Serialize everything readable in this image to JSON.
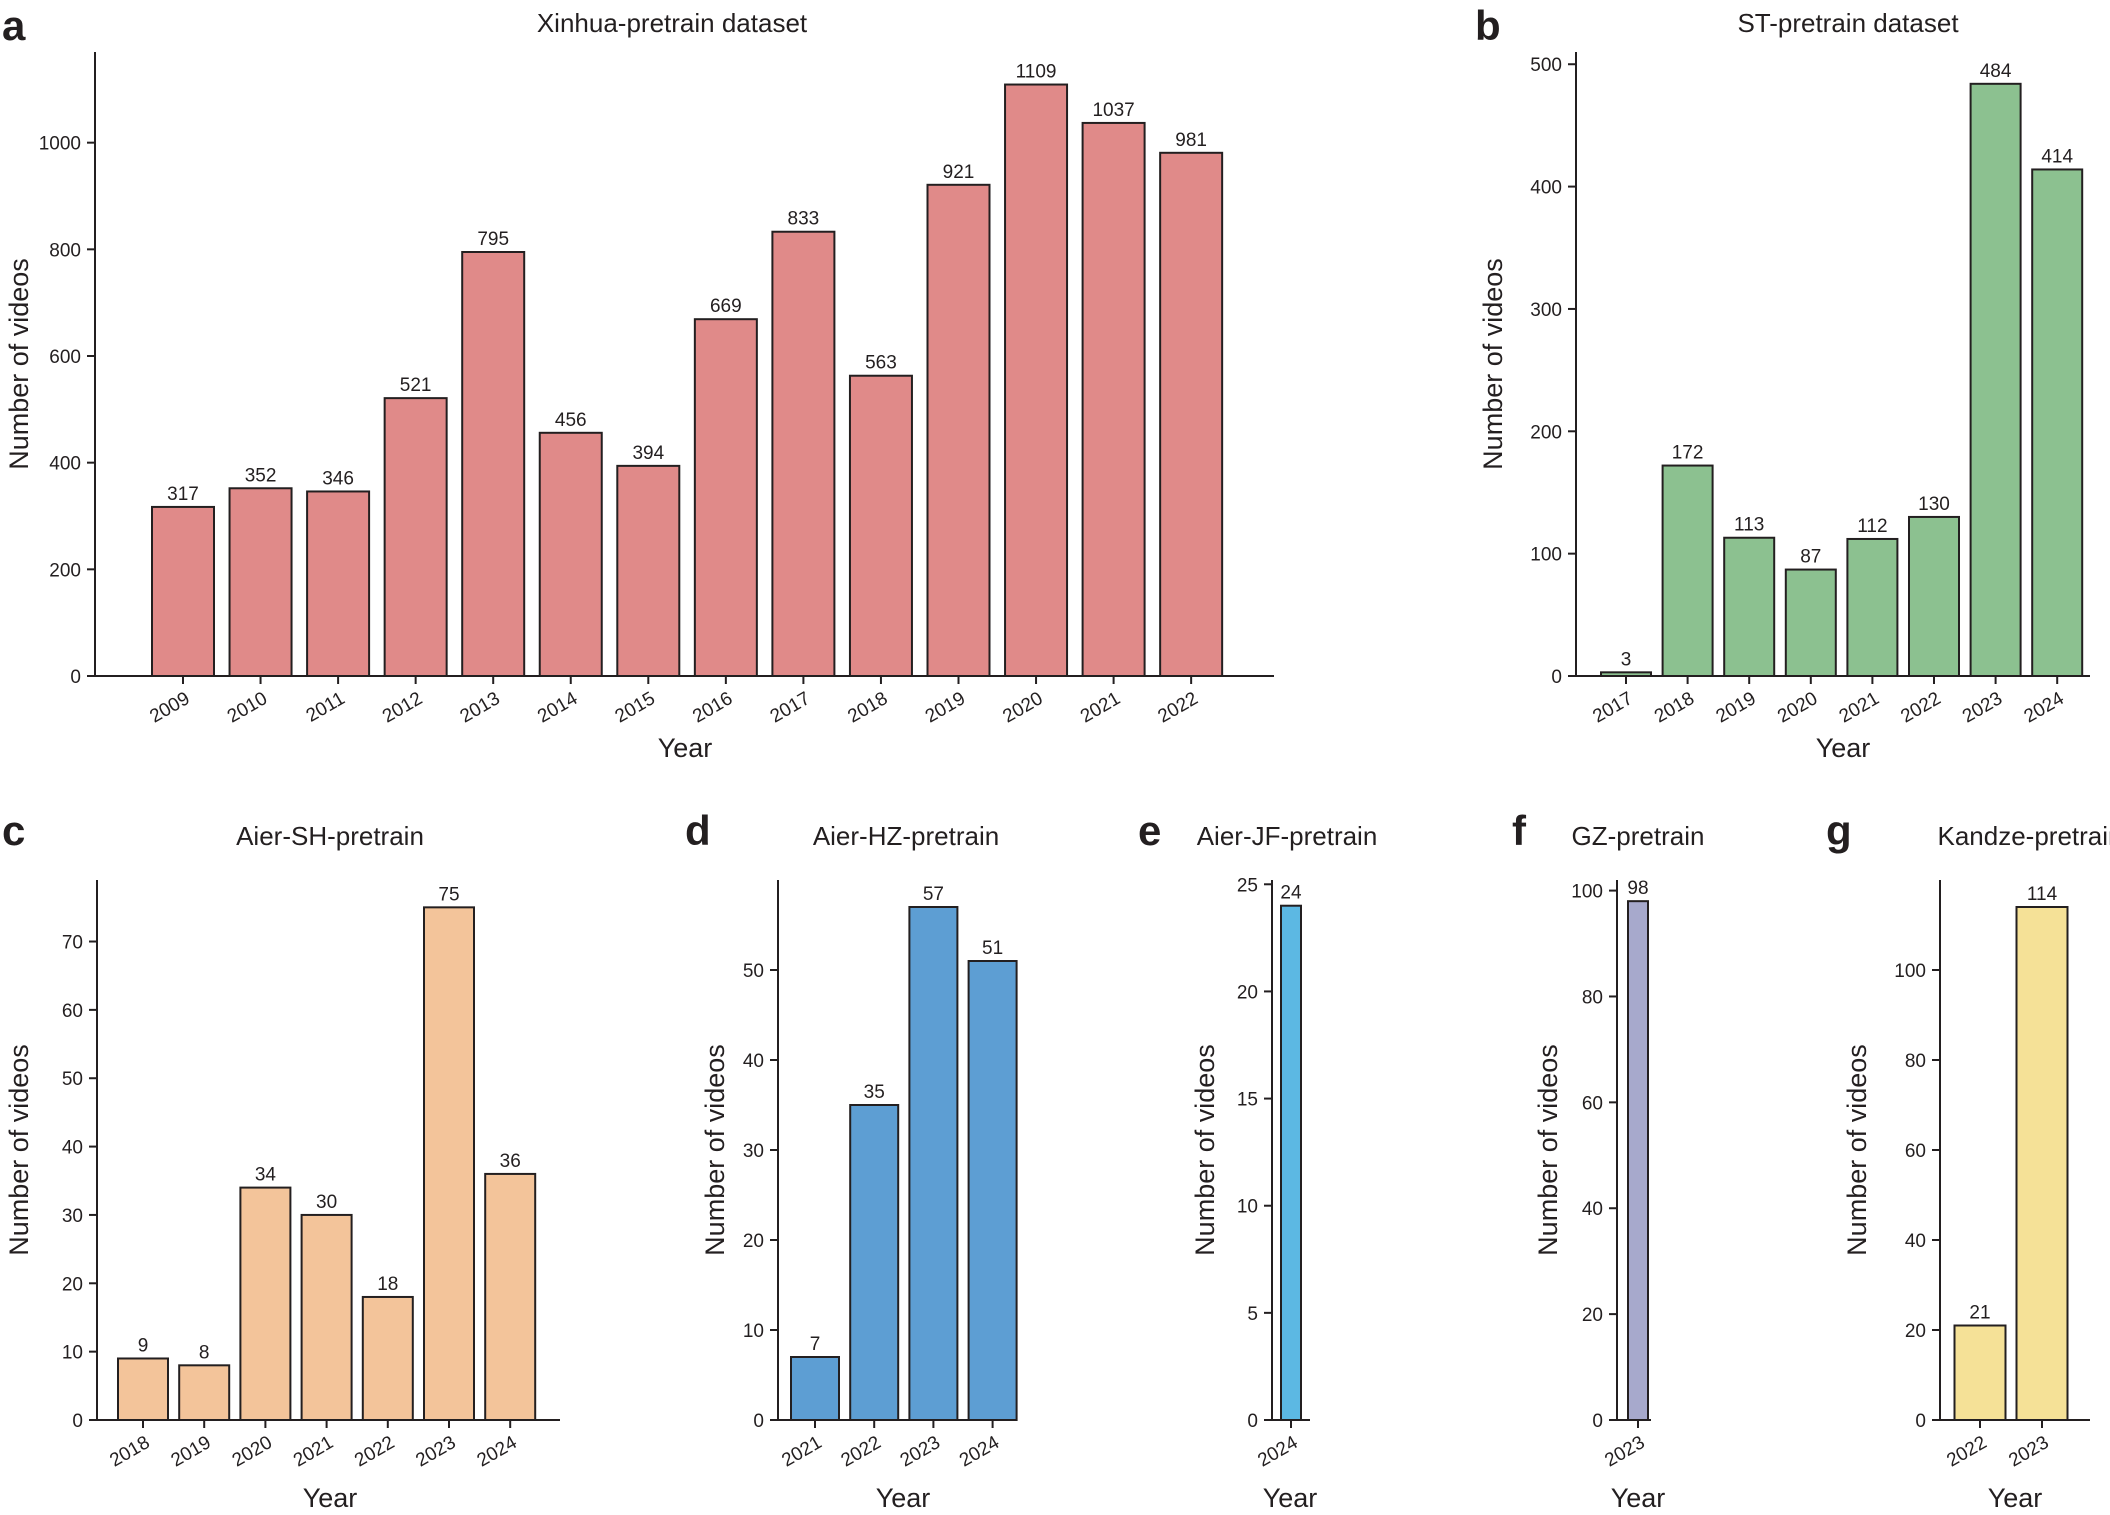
{
  "chart_data": [
    {
      "letter": "a",
      "type": "bar",
      "title": "Xinhua-pretrain dataset",
      "xlabel": "Year",
      "ylabel": "Number of videos",
      "categories": [
        "2009",
        "2010",
        "2011",
        "2012",
        "2013",
        "2014",
        "2015",
        "2016",
        "2017",
        "2018",
        "2019",
        "2020",
        "2021",
        "2022"
      ],
      "values": [
        317,
        352,
        346,
        521,
        795,
        456,
        394,
        669,
        833,
        563,
        921,
        1109,
        1037,
        981
      ],
      "ylim": [
        0,
        1170
      ],
      "yticks": [
        0,
        200,
        400,
        600,
        800,
        1000
      ],
      "color": "#e08a89"
    },
    {
      "letter": "b",
      "type": "bar",
      "title": "ST-pretrain dataset",
      "xlabel": "Year",
      "ylabel": "Number of videos",
      "categories": [
        "2017",
        "2018",
        "2019",
        "2020",
        "2021",
        "2022",
        "2023",
        "2024"
      ],
      "values": [
        3,
        172,
        113,
        87,
        112,
        130,
        484,
        414
      ],
      "ylim": [
        0,
        510
      ],
      "yticks": [
        0,
        100,
        200,
        300,
        400,
        500
      ],
      "color": "#8cc190"
    },
    {
      "letter": "c",
      "type": "bar",
      "title": "Aier-SH-pretrain",
      "xlabel": "Year",
      "ylabel": "Number of videos",
      "categories": [
        "2018",
        "2019",
        "2020",
        "2021",
        "2022",
        "2023",
        "2024"
      ],
      "values": [
        9,
        8,
        34,
        30,
        18,
        75,
        36
      ],
      "ylim": [
        0,
        79
      ],
      "yticks": [
        0,
        10,
        20,
        30,
        40,
        50,
        60,
        70
      ],
      "color": "#f3c49a"
    },
    {
      "letter": "d",
      "type": "bar",
      "title": "Aier-HZ-pretrain",
      "xlabel": "Year",
      "ylabel": "Number of videos",
      "categories": [
        "2021",
        "2022",
        "2023",
        "2024"
      ],
      "values": [
        7,
        35,
        57,
        51
      ],
      "ylim": [
        0,
        60
      ],
      "yticks": [
        0,
        10,
        20,
        30,
        40,
        50
      ],
      "color": "#5d9ed3"
    },
    {
      "letter": "e",
      "type": "bar",
      "title": "Aier-JF-pretrain",
      "xlabel": "Year",
      "ylabel": "Number of videos",
      "categories": [
        "2024"
      ],
      "values": [
        24
      ],
      "ylim": [
        0,
        25.2
      ],
      "yticks": [
        0,
        5,
        10,
        15,
        20,
        25
      ],
      "color": "#5cb8e3"
    },
    {
      "letter": "f",
      "type": "bar",
      "title": "GZ-pretrain",
      "xlabel": "Year",
      "ylabel": "Number of videos",
      "categories": [
        "2023"
      ],
      "values": [
        98
      ],
      "ylim": [
        0,
        102
      ],
      "yticks": [
        0,
        20,
        40,
        60,
        80,
        100
      ],
      "color": "#a7a9cc"
    },
    {
      "letter": "g",
      "type": "bar",
      "title": "Kandze-pretrain",
      "xlabel": "Year",
      "ylabel": "Number of videos",
      "categories": [
        "2022",
        "2023"
      ],
      "values": [
        21,
        114
      ],
      "ylim": [
        0,
        120
      ],
      "yticks": [
        0,
        20,
        40,
        60,
        80,
        100
      ],
      "color": "#f5e197"
    }
  ]
}
